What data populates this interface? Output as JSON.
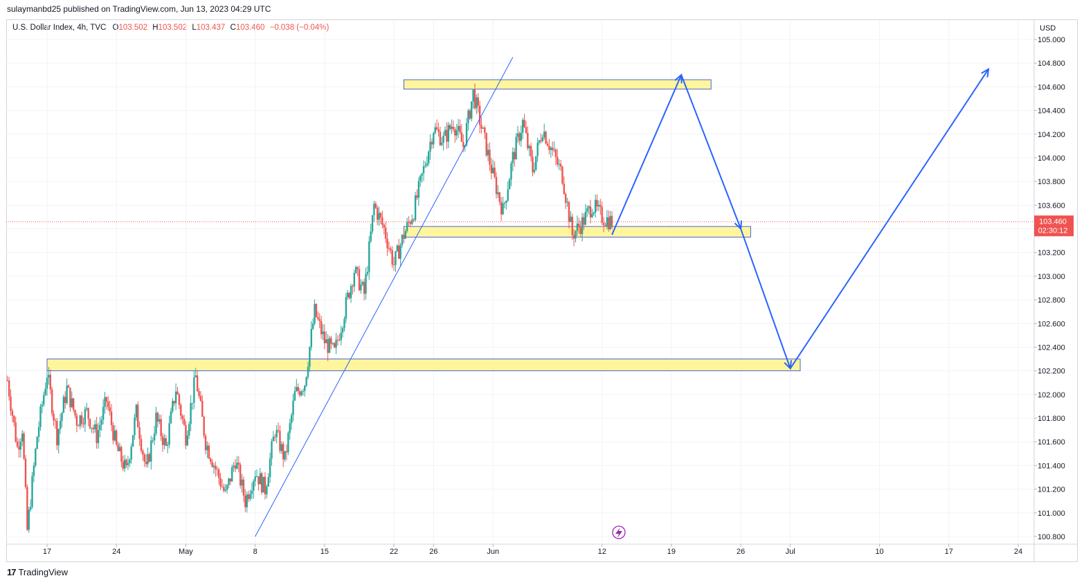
{
  "header": {
    "published_text": "sulaymanbd25 published on TradingView.com, Jun 13, 2023 04:29 UTC"
  },
  "legend": {
    "symbol_text": "U.S. Dollar Index, 4h, TVC",
    "open_label": "O",
    "open_value": "103.502",
    "high_label": "H",
    "high_value": "103.502",
    "low_label": "L",
    "low_value": "103.437",
    "close_label": "C",
    "close_value": "103.460",
    "change_value": "−0.038 (−0.04%)"
  },
  "footer": {
    "brand": "TradingView"
  },
  "colors": {
    "up": "#26a69a",
    "down": "#ef5350",
    "zone_fill": "#fff59d",
    "zone_stroke": "#1f3fd6",
    "projection": "#2962ff",
    "trendline": "#2962ff",
    "price_label_bg": "#ef5350",
    "grid": "#f0f3fa"
  },
  "chart_data": {
    "type": "candlestick",
    "symbol": "U.S. Dollar Index",
    "interval": "4h",
    "currency_label": "USD",
    "y_ticks": [
      "105.000",
      "104.800",
      "104.600",
      "104.400",
      "104.200",
      "104.000",
      "103.800",
      "103.600",
      "103.400",
      "103.200",
      "103.000",
      "102.800",
      "102.600",
      "102.400",
      "102.200",
      "102.000",
      "101.800",
      "101.600",
      "101.400",
      "101.200",
      "101.000",
      "100.800"
    ],
    "ylim": [
      100.78,
      105.03
    ],
    "x_ticks": [
      {
        "label": "17",
        "date": "2023-04-17"
      },
      {
        "label": "24",
        "date": "2023-04-24"
      },
      {
        "label": "May",
        "date": "2023-05-01"
      },
      {
        "label": "8",
        "date": "2023-05-08"
      },
      {
        "label": "15",
        "date": "2023-05-15"
      },
      {
        "label": "22",
        "date": "2023-05-22"
      },
      {
        "label": "26",
        "date": "2023-05-26"
      },
      {
        "label": "Jun",
        "date": "2023-06-01"
      },
      {
        "label": "12",
        "date": "2023-06-12"
      },
      {
        "label": "19",
        "date": "2023-06-19"
      },
      {
        "label": "26",
        "date": "2023-06-26"
      },
      {
        "label": "Jul",
        "date": "2023-07-01"
      },
      {
        "label": "10",
        "date": "2023-07-10"
      },
      {
        "label": "17",
        "date": "2023-07-17"
      },
      {
        "label": "24",
        "date": "2023-07-24"
      }
    ],
    "last_price": {
      "value": "103.460",
      "countdown": "02:30:12"
    },
    "price_path": [
      {
        "date": "2023-04-13",
        "price": 102.12
      },
      {
        "date": "2023-04-14",
        "price": 101.55
      },
      {
        "date": "2023-04-14T12:00",
        "price": 101.72
      },
      {
        "date": "2023-04-15",
        "price": 100.85
      },
      {
        "date": "2023-04-16",
        "price": 101.65
      },
      {
        "date": "2023-04-17",
        "price": 102.18
      },
      {
        "date": "2023-04-18",
        "price": 101.65
      },
      {
        "date": "2023-04-19",
        "price": 102.05
      },
      {
        "date": "2023-04-20",
        "price": 101.78
      },
      {
        "date": "2023-04-21",
        "price": 101.85
      },
      {
        "date": "2023-04-22",
        "price": 101.65
      },
      {
        "date": "2023-04-23",
        "price": 101.95
      },
      {
        "date": "2023-04-24",
        "price": 101.55
      },
      {
        "date": "2023-04-25",
        "price": 101.35
      },
      {
        "date": "2023-04-26",
        "price": 101.85
      },
      {
        "date": "2023-04-27",
        "price": 101.35
      },
      {
        "date": "2023-04-28",
        "price": 101.8
      },
      {
        "date": "2023-04-29",
        "price": 101.55
      },
      {
        "date": "2023-04-30",
        "price": 102.05
      },
      {
        "date": "2023-05-01",
        "price": 101.65
      },
      {
        "date": "2023-05-02",
        "price": 102.15
      },
      {
        "date": "2023-05-03",
        "price": 101.6
      },
      {
        "date": "2023-05-05",
        "price": 101.15
      },
      {
        "date": "2023-05-06",
        "price": 101.45
      },
      {
        "date": "2023-05-07",
        "price": 101.1
      },
      {
        "date": "2023-05-08",
        "price": 101.35
      },
      {
        "date": "2023-05-09",
        "price": 101.2
      },
      {
        "date": "2023-05-10",
        "price": 101.7
      },
      {
        "date": "2023-05-11",
        "price": 101.45
      },
      {
        "date": "2023-05-12",
        "price": 102.0
      },
      {
        "date": "2023-05-13",
        "price": 102.1
      },
      {
        "date": "2023-05-14",
        "price": 102.7
      },
      {
        "date": "2023-05-15",
        "price": 102.45
      },
      {
        "date": "2023-05-16",
        "price": 102.35
      },
      {
        "date": "2023-05-17",
        "price": 102.7
      },
      {
        "date": "2023-05-18",
        "price": 103.05
      },
      {
        "date": "2023-05-19",
        "price": 102.85
      },
      {
        "date": "2023-05-20",
        "price": 103.6
      },
      {
        "date": "2023-05-21",
        "price": 103.4
      },
      {
        "date": "2023-05-22",
        "price": 103.1
      },
      {
        "date": "2023-05-23",
        "price": 103.35
      },
      {
        "date": "2023-05-24",
        "price": 103.55
      },
      {
        "date": "2023-05-25",
        "price": 103.9
      },
      {
        "date": "2023-05-26",
        "price": 104.25
      },
      {
        "date": "2023-05-27",
        "price": 104.15
      },
      {
        "date": "2023-05-28",
        "price": 104.3
      },
      {
        "date": "2023-05-29",
        "price": 104.1
      },
      {
        "date": "2023-05-30",
        "price": 104.55
      },
      {
        "date": "2023-05-31",
        "price": 104.2
      },
      {
        "date": "2023-06-01",
        "price": 103.85
      },
      {
        "date": "2023-06-02",
        "price": 103.55
      },
      {
        "date": "2023-06-03",
        "price": 104.0
      },
      {
        "date": "2023-06-04",
        "price": 104.3
      },
      {
        "date": "2023-06-05",
        "price": 103.9
      },
      {
        "date": "2023-06-06",
        "price": 104.25
      },
      {
        "date": "2023-06-07",
        "price": 104.05
      },
      {
        "date": "2023-06-08",
        "price": 103.85
      },
      {
        "date": "2023-06-09",
        "price": 103.35
      },
      {
        "date": "2023-06-10",
        "price": 103.45
      },
      {
        "date": "2023-06-11",
        "price": 103.6
      },
      {
        "date": "2023-06-12",
        "price": 103.5
      },
      {
        "date": "2023-06-13",
        "price": 103.46
      }
    ],
    "zones": [
      {
        "from": "2023-05-23",
        "to": "2023-06-23",
        "high": 104.66,
        "low": 104.58
      },
      {
        "from": "2023-05-23",
        "to": "2023-06-27",
        "high": 103.42,
        "low": 103.33
      },
      {
        "from": "2023-04-17",
        "to": "2023-07-02",
        "high": 102.3,
        "low": 102.2
      }
    ],
    "trendline": [
      {
        "date": "2023-05-08",
        "price": 100.8
      },
      {
        "date": "2023-06-03",
        "price": 104.85
      }
    ],
    "projection": [
      {
        "date": "2023-06-13",
        "price": 103.35
      },
      {
        "date": "2023-06-20",
        "price": 104.7
      },
      {
        "date": "2023-06-26",
        "price": 103.4
      },
      {
        "date": "2023-07-01",
        "price": 102.22
      },
      {
        "date": "2023-07-21",
        "price": 104.75
      }
    ],
    "grid": true
  }
}
